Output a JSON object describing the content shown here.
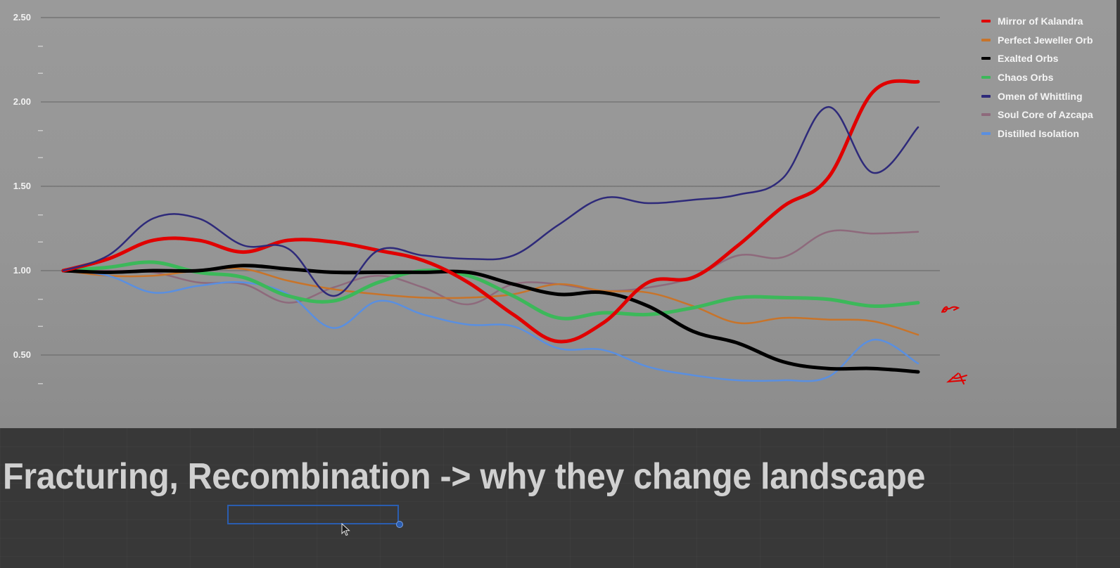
{
  "slide": {
    "title": "Fracturing, Recombination -> why they change landscape"
  },
  "chart_data": {
    "type": "line",
    "title": "",
    "xlabel": "",
    "ylabel": "",
    "ylim": [
      0.25,
      2.5
    ],
    "y_ticks": [
      "2.50",
      "2.00",
      "1.50",
      "1.00",
      "0.50"
    ],
    "y_minor_ticks": [
      2.33,
      2.17,
      1.83,
      1.67,
      1.33,
      1.17,
      0.83,
      0.67,
      0.33
    ],
    "grid": true,
    "legend_position": "right",
    "x": [
      1,
      2,
      3,
      4,
      5,
      6,
      7,
      8,
      9,
      10,
      11,
      12,
      13,
      14,
      15,
      16,
      17,
      18,
      19,
      20
    ],
    "series": [
      {
        "name": "Mirror of Kalandra",
        "color": "#e00000",
        "width": 5,
        "values": [
          1.0,
          1.07,
          1.18,
          1.18,
          1.11,
          1.18,
          1.17,
          1.12,
          1.06,
          0.93,
          0.74,
          0.58,
          0.69,
          0.93,
          0.96,
          1.15,
          1.38,
          1.55,
          2.06,
          2.12
        ]
      },
      {
        "name": "Perfect Jeweller Orb",
        "color": "#c8742a",
        "width": 2.5,
        "values": [
          1.0,
          0.97,
          0.97,
          1.0,
          1.01,
          0.94,
          0.89,
          0.86,
          0.84,
          0.84,
          0.86,
          0.92,
          0.88,
          0.87,
          0.79,
          0.69,
          0.72,
          0.71,
          0.7,
          0.62
        ]
      },
      {
        "name": "Exalted Orbs",
        "color": "#000000",
        "width": 5,
        "values": [
          1.0,
          0.99,
          1.0,
          1.0,
          1.03,
          1.01,
          0.99,
          0.99,
          0.99,
          0.99,
          0.92,
          0.86,
          0.87,
          0.79,
          0.64,
          0.57,
          0.46,
          0.42,
          0.42,
          0.4
        ]
      },
      {
        "name": "Chaos Orbs",
        "color": "#3cb85a",
        "width": 5,
        "values": [
          1.0,
          1.02,
          1.05,
          0.99,
          0.96,
          0.85,
          0.82,
          0.93,
          1.0,
          0.97,
          0.85,
          0.72,
          0.75,
          0.74,
          0.78,
          0.84,
          0.84,
          0.83,
          0.79,
          0.81
        ]
      },
      {
        "name": "Omen of Whittling",
        "color": "#2e2a7a",
        "width": 2.5,
        "values": [
          1.0,
          1.09,
          1.31,
          1.31,
          1.15,
          1.13,
          0.85,
          1.12,
          1.09,
          1.07,
          1.09,
          1.27,
          1.43,
          1.4,
          1.42,
          1.45,
          1.55,
          1.97,
          1.58,
          1.85
        ]
      },
      {
        "name": "Soul Core of Azcapa",
        "color": "#8e6a7c",
        "width": 2.5,
        "values": [
          1.0,
          1.0,
          0.99,
          0.93,
          0.92,
          0.81,
          0.9,
          0.97,
          0.9,
          0.8,
          0.92,
          0.92,
          0.88,
          0.9,
          0.96,
          1.09,
          1.08,
          1.23,
          1.22,
          1.23
        ]
      },
      {
        "name": "Distilled Isolation",
        "color": "#5a8fe0",
        "width": 2.5,
        "values": [
          1.0,
          0.97,
          0.87,
          0.91,
          0.93,
          0.86,
          0.66,
          0.82,
          0.74,
          0.68,
          0.67,
          0.54,
          0.53,
          0.43,
          0.38,
          0.35,
          0.35,
          0.37,
          0.59,
          0.45
        ]
      }
    ],
    "annotations": [
      {
        "type": "hand-drawn-mark",
        "color": "#e00000",
        "near_series": "Chaos Orbs",
        "glyph": "squiggle"
      },
      {
        "type": "hand-drawn-mark",
        "color": "#e00000",
        "near_series": "Exalted Orbs",
        "glyph": "4"
      }
    ]
  },
  "colors": {
    "panel_bg": "#999999",
    "gridline": "#6e6e6e",
    "axis_text": "#f2f2f2",
    "page_bg": "#383838",
    "title_text": "#d0d0d0",
    "selection": "#2a5db0"
  }
}
